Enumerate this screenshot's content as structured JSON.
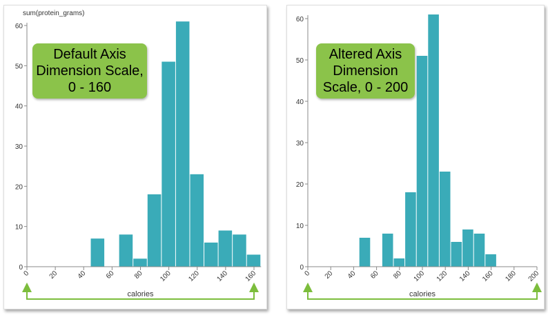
{
  "chart_data": [
    {
      "type": "bar",
      "title": "",
      "ylabel": "sum(protein_grams)",
      "xlabel": "calories",
      "xlim": [
        0,
        165
      ],
      "ylim": [
        0,
        60
      ],
      "xticks": [
        0,
        20,
        40,
        60,
        80,
        100,
        120,
        140,
        160
      ],
      "yticks": [
        0,
        10,
        20,
        30,
        40,
        50,
        60
      ],
      "bins": [
        [
          45,
          55
        ],
        [
          65,
          75
        ],
        [
          75,
          85
        ],
        [
          85,
          95
        ],
        [
          95,
          105
        ],
        [
          105,
          115
        ],
        [
          115,
          125
        ],
        [
          125,
          135
        ],
        [
          135,
          145
        ],
        [
          145,
          155
        ],
        [
          155,
          165
        ]
      ],
      "values": [
        7,
        8,
        2,
        18,
        51,
        61,
        23,
        6,
        9,
        8,
        3
      ],
      "annotation": "Default Axis Dimension Scale, 0 - 160"
    },
    {
      "type": "bar",
      "title": "",
      "ylabel": "",
      "xlabel": "calories",
      "xlim": [
        0,
        200
      ],
      "ylim": [
        0,
        60
      ],
      "xticks": [
        0,
        20,
        40,
        60,
        80,
        100,
        120,
        140,
        160,
        180,
        200
      ],
      "yticks": [
        0,
        10,
        20,
        30,
        40,
        50,
        60
      ],
      "bins": [
        [
          45,
          55
        ],
        [
          65,
          75
        ],
        [
          75,
          85
        ],
        [
          85,
          95
        ],
        [
          95,
          105
        ],
        [
          105,
          115
        ],
        [
          115,
          125
        ],
        [
          125,
          135
        ],
        [
          135,
          145
        ],
        [
          145,
          155
        ],
        [
          155,
          165
        ]
      ],
      "values": [
        7,
        8,
        2,
        18,
        51,
        61,
        23,
        6,
        9,
        8,
        3
      ],
      "annotation": "Altered Axis Dimension Scale, 0 - 200"
    }
  ],
  "colors": {
    "bar": "#3aabb8",
    "annotation": "#8bc34a",
    "arrow": "#7cbd3c"
  }
}
